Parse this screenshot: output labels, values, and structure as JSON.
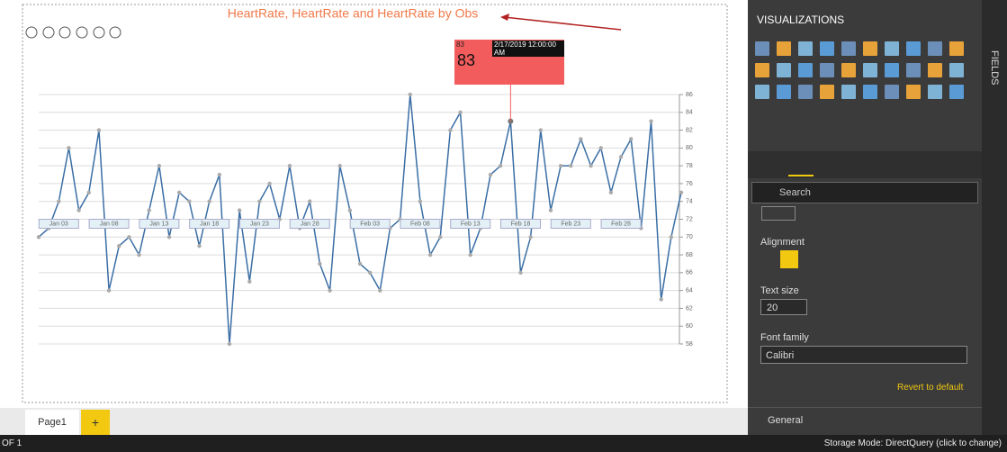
{
  "report_title": "HeartRate, HeartRate and HeartRate by Obs",
  "chart_data": {
    "type": "line",
    "categories": [
      null,
      null,
      "Jan 03",
      null,
      null,
      null,
      null,
      "Jan 08",
      null,
      null,
      null,
      null,
      "Jan 13",
      null,
      null,
      null,
      null,
      "Jan 18",
      null,
      null,
      null,
      null,
      "Jan 23",
      null,
      null,
      null,
      null,
      "Jan 28",
      null,
      null,
      null,
      null,
      null,
      "Feb 03",
      null,
      null,
      null,
      null,
      "Feb 08",
      null,
      null,
      null,
      null,
      "Feb 13",
      null,
      null,
      null,
      null,
      "Feb 18",
      null,
      null,
      null,
      null,
      "Feb 23",
      null,
      null,
      null,
      null,
      "Feb 28",
      null,
      null,
      null,
      null,
      null,
      null
    ],
    "values": [
      70,
      71,
      74,
      80,
      73,
      75,
      82,
      64,
      69,
      70,
      68,
      73,
      78,
      70,
      75,
      74,
      69,
      74,
      77,
      58,
      73,
      65,
      74,
      76,
      72,
      78,
      71,
      74,
      67,
      64,
      78,
      73,
      67,
      66,
      64,
      71,
      72,
      86,
      74,
      68,
      70,
      82,
      84,
      68,
      71,
      77,
      78,
      83,
      66,
      70,
      82,
      73,
      78,
      78,
      81,
      78,
      80,
      75,
      79,
      81,
      71,
      83,
      63,
      70,
      75
    ],
    "color": "#3a6ea5",
    "ylim": [
      58,
      86
    ],
    "yticks": [
      58,
      60,
      62,
      64,
      66,
      68,
      70,
      72,
      74,
      76,
      78,
      80,
      82,
      84,
      86
    ],
    "grid": true
  },
  "tooltip": {
    "small": "83",
    "date": "2/17/2019 12:00:00 AM",
    "big": "83"
  },
  "pane": {
    "title": "VISUALIZATIONS",
    "fields": "FIELDS",
    "search": "Search",
    "alignment": "Alignment",
    "text_size": "Text size",
    "text_size_value": "20",
    "font_family": "Font family",
    "font_value": "Calibri",
    "revert": "Revert to default",
    "general": "General"
  },
  "tabs": {
    "page": "Page1",
    "add": "+"
  },
  "status": {
    "left": "OF 1",
    "right": "Storage Mode: DirectQuery (click to change)"
  }
}
